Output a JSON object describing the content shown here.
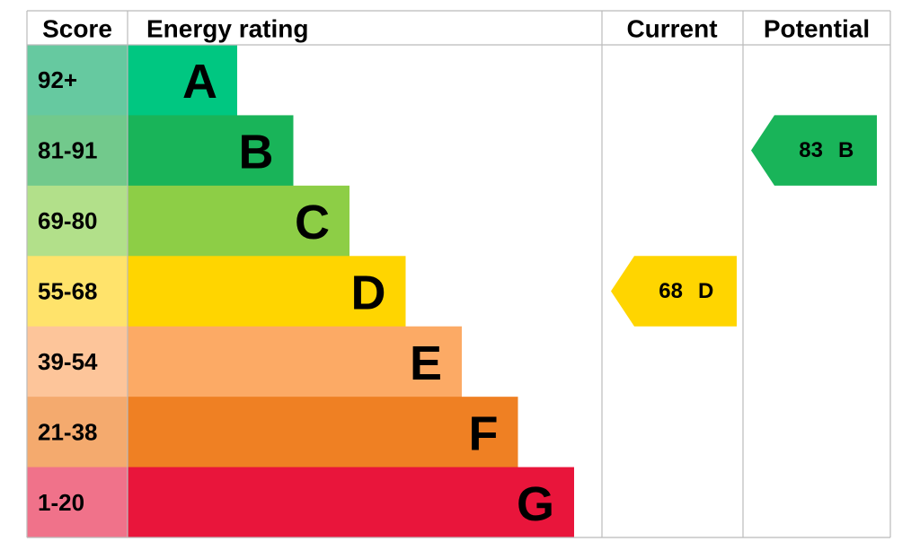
{
  "header": {
    "score": "Score",
    "rating": "Energy rating",
    "current": "Current",
    "potential": "Potential"
  },
  "bands": [
    {
      "score": "92+",
      "letter": "A",
      "color": "#00c781",
      "light": "#66c9a0"
    },
    {
      "score": "81-91",
      "letter": "B",
      "color": "#19b459",
      "light": "#72c98c"
    },
    {
      "score": "69-80",
      "letter": "C",
      "color": "#8dce46",
      "light": "#b2e08a"
    },
    {
      "score": "55-68",
      "letter": "D",
      "color": "#ffd500",
      "light": "#ffe36b"
    },
    {
      "score": "39-54",
      "letter": "E",
      "color": "#fcaa65",
      "light": "#fdc59a"
    },
    {
      "score": "21-38",
      "letter": "F",
      "color": "#ef8023",
      "light": "#f4aa6e"
    },
    {
      "score": "1-20",
      "letter": "G",
      "color": "#e9153b",
      "light": "#f0728a"
    }
  ],
  "current": {
    "value": 68,
    "rating": "D"
  },
  "potential": {
    "value": 83,
    "rating": "B"
  }
}
